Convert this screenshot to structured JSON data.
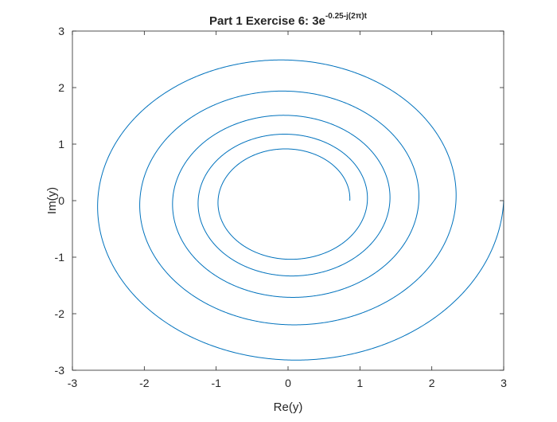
{
  "chart_data": {
    "type": "line",
    "title": {
      "prefix": "Part 1 Exercise 6: 3e",
      "exponent": "-0.25-j(2π)t"
    },
    "xlabel": "Re(y)",
    "ylabel": "Im(y)",
    "xlim": [
      -3,
      3
    ],
    "ylim": [
      -3,
      3
    ],
    "xticks": [
      "-3",
      "-2",
      "-1",
      "0",
      "1",
      "2",
      "3"
    ],
    "yticks": [
      "-3",
      "-2",
      "-1",
      "0",
      "1",
      "2",
      "3"
    ],
    "grid": false,
    "box": true,
    "series": [
      {
        "formula": "3e^{(-0.25 - j2π)t}",
        "amplitude": 3,
        "decay": -0.25,
        "omega": -6.283185307,
        "t_start": 0,
        "t_end": 5,
        "color": "#0072bd"
      }
    ]
  }
}
